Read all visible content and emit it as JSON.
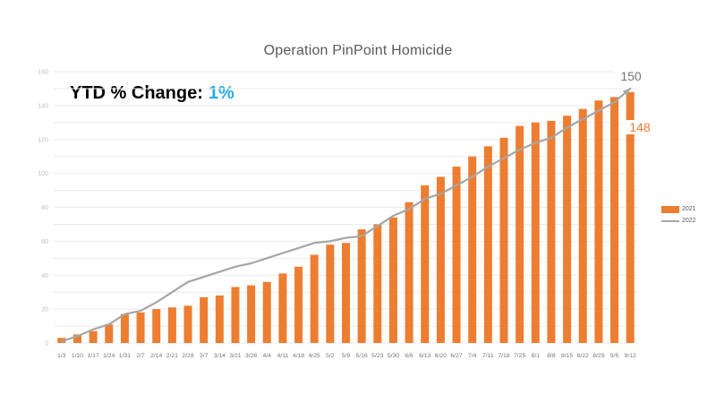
{
  "title": "Operation PinPoint Homicide",
  "annotation": {
    "label": "YTD % Change:",
    "value": "1%"
  },
  "colors": {
    "bar": "#ED7D31",
    "line": "#A6A6A6",
    "title_text": "#595959",
    "annotation_value": "#29ABE2",
    "grid": "#EBEBEB",
    "y_tick": "#BFBFBF",
    "x_tick": "#767676",
    "line_end_label": "#767676",
    "bar_end_label": "#ED7D31"
  },
  "chart_data": {
    "type": "bar",
    "subtype": "bar+line combo, cumulative weekly counts",
    "title": "Operation PinPoint Homicide",
    "categories": [
      "1/3",
      "1/10",
      "1/17",
      "1/24",
      "1/31",
      "2/7",
      "2/14",
      "2/21",
      "2/28",
      "3/7",
      "3/14",
      "3/21",
      "3/28",
      "4/4",
      "4/11",
      "4/18",
      "4/25",
      "5/2",
      "5/9",
      "5/16",
      "5/23",
      "5/30",
      "6/6",
      "6/13",
      "6/20",
      "6/27",
      "7/4",
      "7/11",
      "7/18",
      "7/25",
      "8/1",
      "8/8",
      "8/15",
      "8/22",
      "8/29",
      "9/5",
      "9/12"
    ],
    "series": [
      {
        "name": "2021",
        "type": "bar",
        "color": "#ED7D31",
        "values": [
          3,
          5,
          7,
          11,
          17,
          18,
          20,
          21,
          22,
          27,
          28,
          33,
          34,
          36,
          41,
          45,
          52,
          58,
          59,
          67,
          70,
          74,
          83,
          93,
          98,
          104,
          110,
          116,
          121,
          128,
          130,
          131,
          134,
          138,
          143,
          145,
          148
        ]
      },
      {
        "name": "2022",
        "type": "line",
        "color": "#A6A6A6",
        "values": [
          1,
          4,
          8,
          11,
          17,
          19,
          24,
          30,
          36,
          39,
          42,
          45,
          47,
          50,
          53,
          56,
          59,
          60,
          62,
          63,
          69,
          75,
          79,
          85,
          88,
          93,
          98,
          104,
          109,
          114,
          118,
          121,
          127,
          132,
          137,
          142,
          150
        ]
      }
    ],
    "end_labels": {
      "line": "150",
      "bar": "148"
    },
    "xlabel": "",
    "ylabel": "",
    "ylim": [
      0,
      160
    ],
    "ytick_step": 20,
    "grid_step": 10,
    "grid": "horizontal",
    "legend_position": "right"
  }
}
